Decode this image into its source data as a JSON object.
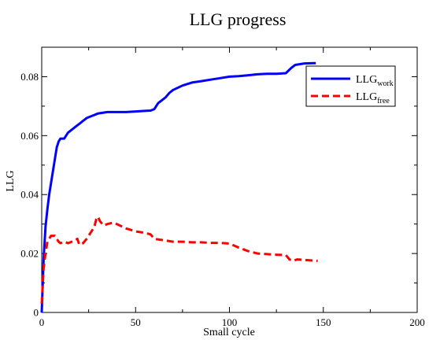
{
  "chart_data": {
    "type": "line",
    "title": "LLG progress",
    "xlabel": "Small cycle",
    "ylabel": "LLG",
    "xlim": [
      0,
      200
    ],
    "ylim": [
      0,
      0.09
    ],
    "xticks": [
      0,
      50,
      100,
      150,
      200
    ],
    "yticks": [
      0,
      0.02,
      0.04,
      0.06,
      0.08
    ],
    "xtick_labels": [
      "0",
      "50",
      "100",
      "150",
      "200"
    ],
    "ytick_labels": [
      "0",
      "0.02",
      "0.04",
      "0.06",
      "0.08"
    ],
    "grid": false,
    "legend_position": "top-right",
    "series": [
      {
        "legend_base": "LLG",
        "legend_sub": "work",
        "color": "#0000ff",
        "style": "solid",
        "x": [
          0,
          1,
          2,
          3,
          4,
          5,
          6,
          7,
          8,
          9,
          10,
          12,
          14,
          16,
          18,
          20,
          22,
          24,
          26,
          28,
          30,
          35,
          40,
          45,
          50,
          55,
          58,
          60,
          62,
          64,
          66,
          68,
          70,
          75,
          80,
          85,
          90,
          95,
          100,
          105,
          110,
          115,
          120,
          125,
          130,
          133,
          135,
          140,
          145,
          146
        ],
        "y": [
          0.0,
          0.018,
          0.029,
          0.035,
          0.04,
          0.044,
          0.048,
          0.052,
          0.056,
          0.058,
          0.059,
          0.059,
          0.061,
          0.062,
          0.063,
          0.064,
          0.065,
          0.066,
          0.0665,
          0.067,
          0.0675,
          0.068,
          0.068,
          0.068,
          0.0682,
          0.0684,
          0.0685,
          0.069,
          0.071,
          0.072,
          0.073,
          0.0745,
          0.0755,
          0.077,
          0.078,
          0.0785,
          0.079,
          0.0795,
          0.08,
          0.0802,
          0.0805,
          0.0808,
          0.081,
          0.081,
          0.0812,
          0.083,
          0.084,
          0.0845,
          0.0846,
          0.0846
        ]
      },
      {
        "legend_base": "LLG",
        "legend_sub": "free",
        "color": "#ff0000",
        "style": "dashed",
        "x": [
          0,
          1,
          2,
          3,
          4,
          5,
          6,
          7,
          8,
          9,
          10,
          12,
          14,
          16,
          18,
          19,
          20,
          22,
          24,
          26,
          28,
          29,
          30,
          31,
          33,
          35,
          38,
          40,
          45,
          50,
          55,
          58,
          60,
          65,
          70,
          75,
          80,
          85,
          90,
          95,
          100,
          105,
          110,
          115,
          120,
          125,
          130,
          132,
          134,
          136,
          140,
          145,
          147
        ],
        "y": [
          0.003,
          0.015,
          0.02,
          0.024,
          0.025,
          0.026,
          0.026,
          0.026,
          0.025,
          0.024,
          0.0235,
          0.024,
          0.0235,
          0.024,
          0.0245,
          0.025,
          0.023,
          0.0235,
          0.025,
          0.027,
          0.029,
          0.0315,
          0.0325,
          0.031,
          0.0295,
          0.03,
          0.0305,
          0.03,
          0.0285,
          0.0275,
          0.027,
          0.0265,
          0.025,
          0.0245,
          0.024,
          0.024,
          0.0238,
          0.0238,
          0.0236,
          0.0236,
          0.0234,
          0.022,
          0.0208,
          0.02,
          0.0198,
          0.0196,
          0.0195,
          0.018,
          0.0175,
          0.018,
          0.0178,
          0.0176,
          0.0175
        ]
      }
    ]
  }
}
